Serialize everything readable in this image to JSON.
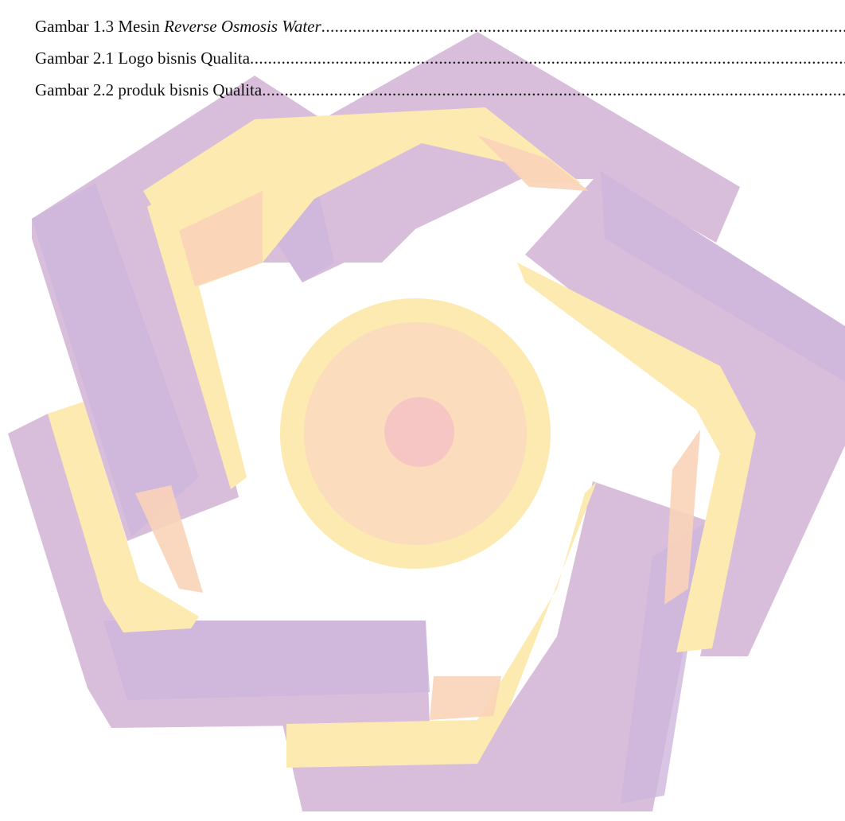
{
  "list_of_figures": [
    {
      "prefix": "Gambar 1.3 Mesin ",
      "emphasis": "Reverse Osmosis Water",
      "suffix": ""
    },
    {
      "prefix": "Gambar 2.1 Logo bisnis Qualita",
      "emphasis": "",
      "suffix": ""
    },
    {
      "prefix": "Gambar 2.2 produk bisnis Qualita",
      "emphasis": "",
      "suffix": ""
    }
  ],
  "leader_char": ".",
  "watermark": {
    "logo": "university-emblem-watermark",
    "colors": {
      "purple": "#d8bedb",
      "purple_dark": "#cdb6dc",
      "yellow": "#fdeab0",
      "peach": "#f9d3b8",
      "pink": "#f6c6c4"
    }
  }
}
